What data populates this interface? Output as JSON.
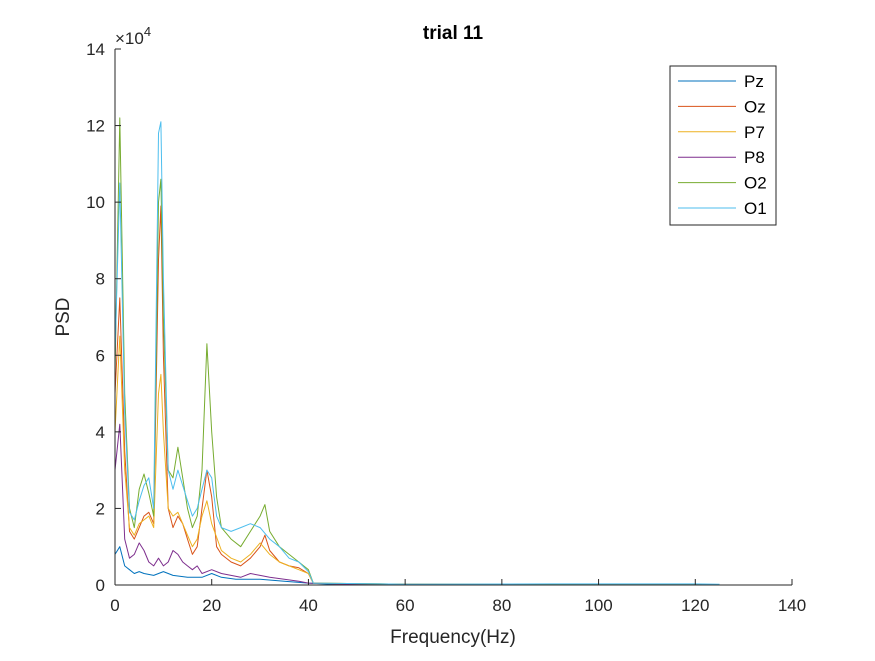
{
  "chart_data": {
    "type": "line",
    "title": "trial 11",
    "xlabel": "Frequency(Hz)",
    "ylabel": "PSD",
    "xlim": [
      0,
      140
    ],
    "ylim": [
      0,
      14
    ],
    "y_multiplier_label": "×10",
    "y_multiplier_exponent": "4",
    "xticks": [
      "0",
      "20",
      "40",
      "60",
      "80",
      "100",
      "120",
      "140"
    ],
    "yticks": [
      "0",
      "2",
      "4",
      "6",
      "8",
      "10",
      "12",
      "14"
    ],
    "grid": false,
    "legend_position": "top-right",
    "series": [
      {
        "name": "Pz",
        "color": "#0072BD",
        "points": [
          [
            0,
            0.8
          ],
          [
            1,
            1.0
          ],
          [
            2,
            0.5
          ],
          [
            3,
            0.4
          ],
          [
            4,
            0.3
          ],
          [
            5,
            0.35
          ],
          [
            6,
            0.3
          ],
          [
            8,
            0.25
          ],
          [
            10,
            0.35
          ],
          [
            12,
            0.25
          ],
          [
            15,
            0.2
          ],
          [
            18,
            0.2
          ],
          [
            20,
            0.3
          ],
          [
            22,
            0.2
          ],
          [
            25,
            0.15
          ],
          [
            30,
            0.15
          ],
          [
            35,
            0.1
          ],
          [
            40,
            0.05
          ],
          [
            45,
            0.02
          ],
          [
            60,
            0.01
          ],
          [
            80,
            0.01
          ],
          [
            100,
            0.01
          ],
          [
            120,
            0.01
          ],
          [
            125,
            0.01
          ]
        ]
      },
      {
        "name": "Oz",
        "color": "#D95319",
        "points": [
          [
            0,
            5.0
          ],
          [
            1,
            7.5
          ],
          [
            2,
            3.5
          ],
          [
            3,
            1.4
          ],
          [
            4,
            1.2
          ],
          [
            5,
            1.5
          ],
          [
            6,
            1.8
          ],
          [
            7,
            1.9
          ],
          [
            8,
            1.6
          ],
          [
            9,
            8.5
          ],
          [
            9.5,
            9.9
          ],
          [
            10,
            6.0
          ],
          [
            11,
            2.0
          ],
          [
            12,
            1.5
          ],
          [
            13,
            1.8
          ],
          [
            14,
            1.6
          ],
          [
            15,
            1.2
          ],
          [
            16,
            0.8
          ],
          [
            17,
            1.0
          ],
          [
            18,
            2.0
          ],
          [
            19,
            3.0
          ],
          [
            20,
            2.3
          ],
          [
            21,
            1.0
          ],
          [
            22,
            0.8
          ],
          [
            24,
            0.6
          ],
          [
            26,
            0.5
          ],
          [
            28,
            0.7
          ],
          [
            30,
            1.0
          ],
          [
            31,
            1.3
          ],
          [
            32,
            0.9
          ],
          [
            34,
            0.6
          ],
          [
            36,
            0.5
          ],
          [
            38,
            0.45
          ],
          [
            40,
            0.3
          ],
          [
            41,
            0.05
          ],
          [
            50,
            0.02
          ],
          [
            80,
            0.02
          ],
          [
            100,
            0.01
          ],
          [
            120,
            0.01
          ],
          [
            125,
            0.01
          ]
        ]
      },
      {
        "name": "P7",
        "color": "#EDB120",
        "points": [
          [
            0,
            4.0
          ],
          [
            1,
            6.5
          ],
          [
            2,
            3.0
          ],
          [
            3,
            1.5
          ],
          [
            4,
            1.3
          ],
          [
            5,
            1.6
          ],
          [
            6,
            1.7
          ],
          [
            7,
            1.8
          ],
          [
            8,
            1.5
          ],
          [
            9,
            5.0
          ],
          [
            9.5,
            5.5
          ],
          [
            10,
            4.0
          ],
          [
            11,
            2.0
          ],
          [
            12,
            1.8
          ],
          [
            13,
            1.9
          ],
          [
            14,
            1.6
          ],
          [
            15,
            1.3
          ],
          [
            16,
            1.0
          ],
          [
            17,
            1.2
          ],
          [
            18,
            1.8
          ],
          [
            19,
            2.2
          ],
          [
            20,
            1.6
          ],
          [
            22,
            0.9
          ],
          [
            24,
            0.7
          ],
          [
            26,
            0.6
          ],
          [
            28,
            0.8
          ],
          [
            30,
            1.1
          ],
          [
            32,
            0.8
          ],
          [
            34,
            0.6
          ],
          [
            36,
            0.5
          ],
          [
            38,
            0.4
          ],
          [
            40,
            0.3
          ],
          [
            41,
            0.05
          ],
          [
            60,
            0.02
          ],
          [
            100,
            0.01
          ],
          [
            125,
            0.01
          ]
        ]
      },
      {
        "name": "P8",
        "color": "#7E2F8E",
        "points": [
          [
            0,
            3.0
          ],
          [
            1,
            4.2
          ],
          [
            2,
            1.2
          ],
          [
            3,
            0.7
          ],
          [
            4,
            0.8
          ],
          [
            5,
            1.1
          ],
          [
            6,
            0.9
          ],
          [
            7,
            0.6
          ],
          [
            8,
            0.5
          ],
          [
            9,
            0.7
          ],
          [
            10,
            0.5
          ],
          [
            11,
            0.6
          ],
          [
            12,
            0.9
          ],
          [
            13,
            0.8
          ],
          [
            14,
            0.6
          ],
          [
            15,
            0.5
          ],
          [
            16,
            0.4
          ],
          [
            17,
            0.5
          ],
          [
            18,
            0.3
          ],
          [
            20,
            0.4
          ],
          [
            22,
            0.3
          ],
          [
            24,
            0.25
          ],
          [
            26,
            0.2
          ],
          [
            28,
            0.3
          ],
          [
            30,
            0.25
          ],
          [
            32,
            0.2
          ],
          [
            35,
            0.15
          ],
          [
            38,
            0.1
          ],
          [
            40,
            0.05
          ],
          [
            50,
            0.02
          ],
          [
            80,
            0.01
          ],
          [
            125,
            0.01
          ]
        ]
      },
      {
        "name": "O2",
        "color": "#77AC30",
        "points": [
          [
            0,
            5.5
          ],
          [
            1,
            12.2
          ],
          [
            2,
            5.0
          ],
          [
            3,
            2.0
          ],
          [
            4,
            1.5
          ],
          [
            5,
            2.5
          ],
          [
            6,
            2.9
          ],
          [
            7,
            2.4
          ],
          [
            8,
            1.8
          ],
          [
            9,
            10.0
          ],
          [
            9.5,
            10.6
          ],
          [
            10,
            7.0
          ],
          [
            11,
            3.0
          ],
          [
            12,
            2.8
          ],
          [
            13,
            3.6
          ],
          [
            14,
            2.8
          ],
          [
            15,
            2.0
          ],
          [
            16,
            1.5
          ],
          [
            17,
            1.8
          ],
          [
            18,
            3.0
          ],
          [
            19,
            6.3
          ],
          [
            20,
            4.0
          ],
          [
            21,
            2.3
          ],
          [
            22,
            1.5
          ],
          [
            24,
            1.2
          ],
          [
            26,
            1.0
          ],
          [
            28,
            1.4
          ],
          [
            30,
            1.8
          ],
          [
            31,
            2.1
          ],
          [
            32,
            1.4
          ],
          [
            34,
            1.0
          ],
          [
            36,
            0.8
          ],
          [
            38,
            0.6
          ],
          [
            40,
            0.4
          ],
          [
            41,
            0.05
          ],
          [
            60,
            0.02
          ],
          [
            100,
            0.01
          ],
          [
            125,
            0.01
          ]
        ]
      },
      {
        "name": "O1",
        "color": "#4DBEEE",
        "points": [
          [
            0,
            6.0
          ],
          [
            1,
            10.5
          ],
          [
            2,
            4.5
          ],
          [
            3,
            1.9
          ],
          [
            4,
            1.7
          ],
          [
            5,
            2.2
          ],
          [
            6,
            2.6
          ],
          [
            7,
            2.8
          ],
          [
            8,
            2.0
          ],
          [
            9,
            11.8
          ],
          [
            9.5,
            12.1
          ],
          [
            10,
            8.0
          ],
          [
            11,
            3.0
          ],
          [
            12,
            2.5
          ],
          [
            13,
            3.0
          ],
          [
            14,
            2.6
          ],
          [
            15,
            2.2
          ],
          [
            16,
            1.8
          ],
          [
            17,
            2.0
          ],
          [
            18,
            2.5
          ],
          [
            19,
            3.0
          ],
          [
            20,
            2.8
          ],
          [
            21,
            1.8
          ],
          [
            22,
            1.5
          ],
          [
            24,
            1.4
          ],
          [
            26,
            1.5
          ],
          [
            28,
            1.6
          ],
          [
            30,
            1.5
          ],
          [
            32,
            1.2
          ],
          [
            34,
            1.0
          ],
          [
            36,
            0.7
          ],
          [
            38,
            0.6
          ],
          [
            40,
            0.35
          ],
          [
            41,
            0.05
          ],
          [
            60,
            0.02
          ],
          [
            90,
            0.03
          ],
          [
            100,
            0.03
          ],
          [
            110,
            0.03
          ],
          [
            120,
            0.03
          ],
          [
            125,
            0.02
          ]
        ]
      }
    ]
  }
}
